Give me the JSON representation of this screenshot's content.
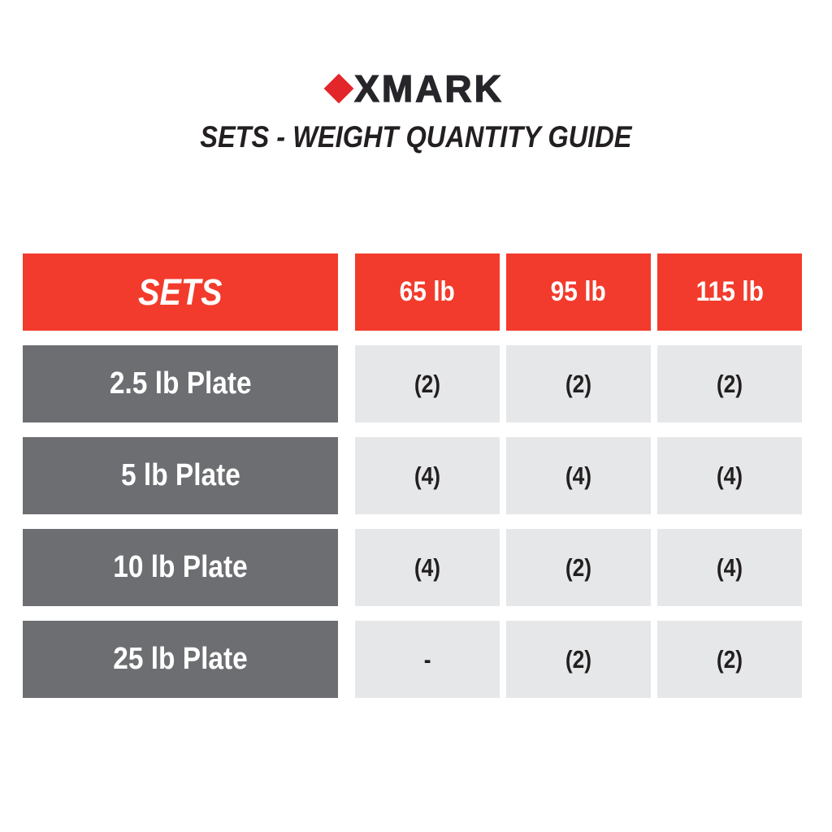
{
  "brand": {
    "logo_text": "XMARK",
    "logo_diamond_color": "#E3262A",
    "logo_text_color": "#26262A"
  },
  "title": "SETS - WEIGHT QUANTITY GUIDE",
  "colors": {
    "accent_red": "#F23B2C",
    "dark_gray": "#6D6E71",
    "light_gray": "#E6E7E8",
    "text_dark": "#231F20",
    "white": "#FFFFFF"
  },
  "chart_data": {
    "type": "table",
    "title": "SETS - WEIGHT QUANTITY GUIDE",
    "corner_label": "SETS",
    "columns": [
      "65 lb",
      "95 lb",
      "115 lb"
    ],
    "rows": [
      {
        "label": "2.5 lb Plate",
        "values": [
          "(2)",
          "(2)",
          "(2)"
        ]
      },
      {
        "label": "5 lb Plate",
        "values": [
          "(4)",
          "(4)",
          "(4)"
        ]
      },
      {
        "label": "10 lb Plate",
        "values": [
          "(4)",
          "(2)",
          "(4)"
        ]
      },
      {
        "label": "25 lb Plate",
        "values": [
          "-",
          "(2)",
          "(2)"
        ]
      }
    ],
    "legend_position": "none",
    "grid": false
  }
}
